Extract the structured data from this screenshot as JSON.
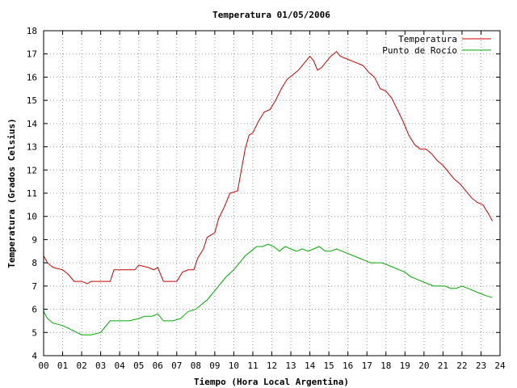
{
  "chart_data": {
    "type": "line",
    "title": "Temperatura 01/05/2006",
    "xlabel": "Tiempo (Hora Local Argentina)",
    "ylabel": "Temperatura (Grados Celsius)",
    "xlim": [
      0,
      24
    ],
    "ylim": [
      4,
      18
    ],
    "grid": true,
    "legend_position": "top-right",
    "x_tick_labels": [
      "00",
      "01",
      "02",
      "03",
      "04",
      "05",
      "06",
      "07",
      "08",
      "09",
      "10",
      "11",
      "12",
      "13",
      "14",
      "15",
      "16",
      "17",
      "18",
      "19",
      "20",
      "21",
      "22",
      "23",
      "24"
    ],
    "y_tick_labels": [
      "4",
      "5",
      "6",
      "7",
      "8",
      "9",
      "10",
      "11",
      "12",
      "13",
      "14",
      "15",
      "16",
      "17",
      "18"
    ],
    "series": [
      {
        "name": "Temperatura",
        "color": "#cc0000",
        "x": [
          0,
          0.2,
          0.5,
          1.0,
          1.3,
          1.6,
          2.0,
          2.3,
          2.5,
          3.0,
          3.5,
          3.7,
          4.0,
          4.5,
          4.8,
          5.0,
          5.5,
          5.8,
          6.0,
          6.3,
          6.6,
          7.0,
          7.3,
          7.6,
          7.9,
          8.1,
          8.4,
          8.6,
          9.0,
          9.2,
          9.5,
          9.8,
          10.2,
          10.4,
          10.6,
          10.8,
          11.0,
          11.3,
          11.6,
          11.9,
          12.2,
          12.5,
          12.8,
          13.1,
          13.4,
          13.7,
          14.0,
          14.2,
          14.4,
          14.6,
          14.8,
          15.1,
          15.4,
          15.6,
          15.9,
          16.2,
          16.5,
          16.8,
          17.1,
          17.4,
          17.7,
          18.0,
          18.3,
          18.6,
          18.9,
          19.2,
          19.5,
          19.8,
          20.1,
          20.4,
          20.7,
          21.0,
          21.3,
          21.6,
          21.9,
          22.2,
          22.5,
          22.8,
          23.1,
          23.4,
          23.6
        ],
        "values": [
          8.3,
          8.0,
          7.8,
          7.7,
          7.5,
          7.2,
          7.2,
          7.1,
          7.2,
          7.2,
          7.2,
          7.7,
          7.7,
          7.7,
          7.7,
          7.9,
          7.8,
          7.7,
          7.8,
          7.2,
          7.2,
          7.2,
          7.6,
          7.7,
          7.7,
          8.2,
          8.6,
          9.1,
          9.3,
          9.9,
          10.4,
          11.0,
          11.1,
          12.0,
          12.9,
          13.5,
          13.6,
          14.1,
          14.5,
          14.6,
          15.0,
          15.5,
          15.9,
          16.1,
          16.3,
          16.6,
          16.9,
          16.7,
          16.3,
          16.4,
          16.6,
          16.9,
          17.1,
          16.9,
          16.8,
          16.7,
          16.6,
          16.5,
          16.2,
          16.0,
          15.5,
          15.4,
          15.1,
          14.6,
          14.1,
          13.5,
          13.1,
          12.9,
          12.9,
          12.7,
          12.4,
          12.2,
          11.9,
          11.6,
          11.4,
          11.1,
          10.8,
          10.6,
          10.5,
          10.1,
          9.8
        ]
      },
      {
        "name": "Punto de Rocío",
        "color": "#00aa00",
        "x": [
          0,
          0.2,
          0.5,
          1.0,
          1.5,
          2.0,
          2.5,
          3.0,
          3.2,
          3.5,
          4.0,
          4.5,
          5.0,
          5.3,
          5.7,
          6.0,
          6.3,
          6.8,
          7.2,
          7.6,
          8.0,
          8.3,
          8.6,
          9.0,
          9.3,
          9.6,
          10.0,
          10.3,
          10.6,
          10.9,
          11.2,
          11.5,
          11.8,
          12.1,
          12.4,
          12.7,
          13.0,
          13.3,
          13.6,
          13.9,
          14.2,
          14.5,
          14.8,
          15.1,
          15.4,
          15.7,
          16.0,
          16.3,
          16.6,
          16.9,
          17.2,
          17.5,
          17.8,
          18.1,
          18.4,
          18.7,
          19.0,
          19.3,
          19.6,
          19.9,
          20.2,
          20.5,
          20.8,
          21.1,
          21.4,
          21.7,
          22.0,
          22.3,
          22.6,
          22.9,
          23.2,
          23.6
        ],
        "values": [
          5.9,
          5.6,
          5.4,
          5.3,
          5.1,
          4.9,
          4.9,
          5.0,
          5.2,
          5.5,
          5.5,
          5.5,
          5.6,
          5.7,
          5.7,
          5.8,
          5.5,
          5.5,
          5.6,
          5.9,
          6.0,
          6.2,
          6.4,
          6.8,
          7.1,
          7.4,
          7.7,
          8.0,
          8.3,
          8.5,
          8.7,
          8.7,
          8.8,
          8.7,
          8.5,
          8.7,
          8.6,
          8.5,
          8.6,
          8.5,
          8.6,
          8.7,
          8.5,
          8.5,
          8.6,
          8.5,
          8.4,
          8.3,
          8.2,
          8.1,
          8.0,
          8.0,
          8.0,
          7.9,
          7.8,
          7.7,
          7.6,
          7.4,
          7.3,
          7.2,
          7.1,
          7.0,
          7.0,
          7.0,
          6.9,
          6.9,
          7.0,
          6.9,
          6.8,
          6.7,
          6.6,
          6.5
        ]
      }
    ]
  }
}
